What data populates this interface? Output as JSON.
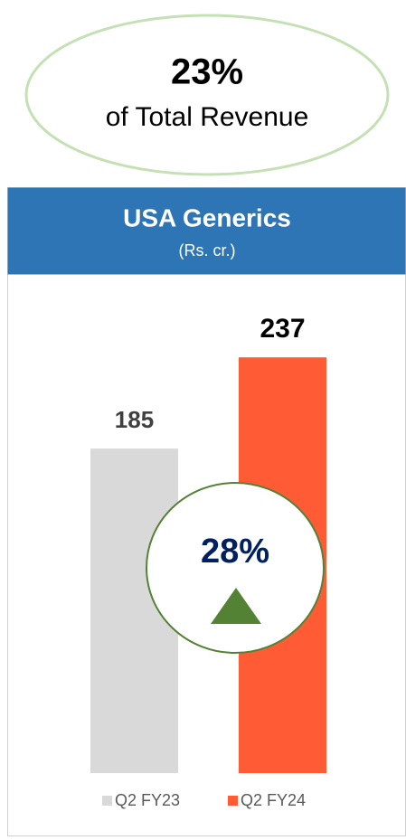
{
  "chart_data": {
    "type": "bar",
    "title": "USA Generics",
    "subtitle": "(Rs. cr.)",
    "categories": [
      "Q2 FY23",
      "Q2 FY24"
    ],
    "values": [
      185,
      237
    ],
    "colors": [
      "#d9d9d9",
      "#ff5b35"
    ],
    "annotations": {
      "revenue_share": "23%",
      "revenue_share_caption": "of Total Revenue",
      "growth": "28%"
    }
  }
}
